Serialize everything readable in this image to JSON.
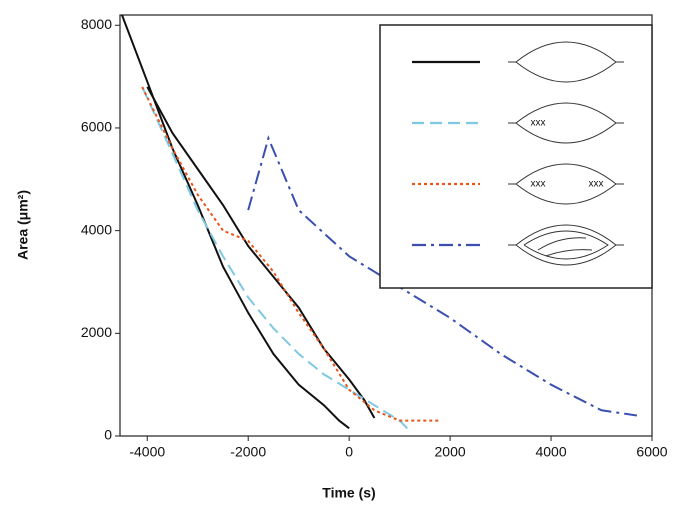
{
  "chart_data": {
    "type": "line",
    "xlabel": "Time (s)",
    "ylabel": "Area (μm²)",
    "xlim": [
      -4540,
      6000
    ],
    "ylim": [
      0,
      8200
    ],
    "xticks": [
      -4000,
      -2000,
      0,
      2000,
      4000,
      6000
    ],
    "yticks": [
      0,
      2000,
      4000,
      6000,
      8000
    ],
    "series": [
      {
        "color": "#111111",
        "dash": "none",
        "x": [
          -4500,
          -4000,
          -3500,
          -3000,
          -2500,
          -2000,
          -1500,
          -1000,
          -500,
          -200,
          0
        ],
        "values": [
          8200,
          6900,
          5600,
          4500,
          3300,
          2400,
          1600,
          1000,
          600,
          300,
          150
        ]
      },
      {
        "color": "#111111",
        "dash": "none",
        "x": [
          -4000,
          -3500,
          -3000,
          -2500,
          -2000,
          -1500,
          -1000,
          -500,
          0,
          300,
          500
        ],
        "values": [
          6800,
          5900,
          5200,
          4500,
          3700,
          3100,
          2500,
          1700,
          1100,
          700,
          350
        ]
      },
      {
        "color": "#7ec8e3",
        "dash": "12,6",
        "x": [
          -4100,
          -3500,
          -3000,
          -2500,
          -2000,
          -1500,
          -1000,
          -500,
          0,
          500,
          1000,
          1200
        ],
        "values": [
          6800,
          5500,
          4400,
          3500,
          2700,
          2100,
          1600,
          1200,
          900,
          600,
          300,
          100
        ]
      },
      {
        "color": "#e8541a",
        "dash": "3,3",
        "x": [
          -4100,
          -3500,
          -3000,
          -2500,
          -2000,
          -1500,
          -1000,
          -500,
          0,
          500,
          1000,
          1500,
          1800
        ],
        "values": [
          6800,
          5600,
          4700,
          4000,
          3800,
          3200,
          2400,
          1700,
          900,
          500,
          300,
          300,
          300
        ]
      },
      {
        "color": "#3a4fb0",
        "dash": "14,5,3,5",
        "x": [
          -2000,
          -1600,
          -1000,
          0,
          1000,
          2000,
          3000,
          4000,
          5000,
          5700
        ],
        "values": [
          4400,
          5800,
          4400,
          3500,
          2900,
          2300,
          1600,
          1000,
          500,
          400
        ]
      }
    ]
  }
}
